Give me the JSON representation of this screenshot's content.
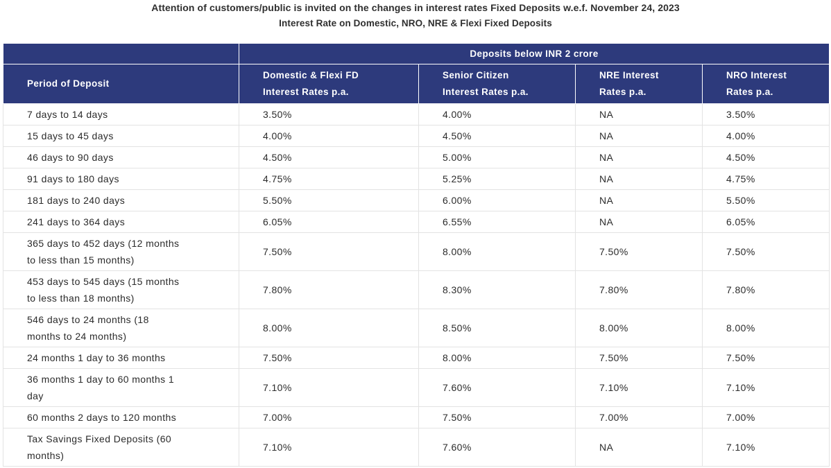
{
  "notice": {
    "line1": "Attention of customers/public is invited on the changes in interest rates Fixed Deposits w.e.f. November 24, 2023",
    "line2": "Interest Rate on Domestic, NRO, NRE & Flexi Fixed Deposits"
  },
  "table": {
    "group_header": "Deposits below INR 2 crore",
    "headers": [
      {
        "line1": "Period of Deposit",
        "line2": ""
      },
      {
        "line1": "Domestic & Flexi FD",
        "line2": "Interest Rates p.a."
      },
      {
        "line1": "Senior Citizen",
        "line2": "Interest Rates p.a."
      },
      {
        "line1": "NRE Interest",
        "line2": "Rates p.a."
      },
      {
        "line1": "NRO Interest",
        "line2": "Rates p.a."
      }
    ],
    "rows": [
      {
        "period_line1": "7 days to 14 days",
        "period_line2": "",
        "domestic": "3.50%",
        "senior": "4.00%",
        "nre": "NA",
        "nro": "3.50%"
      },
      {
        "period_line1": "15 days to 45 days",
        "period_line2": "",
        "domestic": "4.00%",
        "senior": "4.50%",
        "nre": "NA",
        "nro": "4.00%"
      },
      {
        "period_line1": "46 days to 90 days",
        "period_line2": "",
        "domestic": "4.50%",
        "senior": "5.00%",
        "nre": "NA",
        "nro": "4.50%"
      },
      {
        "period_line1": "91 days to 180 days",
        "period_line2": "",
        "domestic": "4.75%",
        "senior": "5.25%",
        "nre": "NA",
        "nro": "4.75%"
      },
      {
        "period_line1": "181 days to 240 days",
        "period_line2": "",
        "domestic": "5.50%",
        "senior": "6.00%",
        "nre": "NA",
        "nro": "5.50%"
      },
      {
        "period_line1": "241 days to 364 days",
        "period_line2": "",
        "domestic": "6.05%",
        "senior": "6.55%",
        "nre": "NA",
        "nro": "6.05%"
      },
      {
        "period_line1": "365 days to 452 days (12 months",
        "period_line2": "to less than 15 months)",
        "domestic": "7.50%",
        "senior": "8.00%",
        "nre": "7.50%",
        "nro": "7.50%"
      },
      {
        "period_line1": "453 days to 545 days (15 months",
        "period_line2": "to less than 18 months)",
        "domestic": "7.80%",
        "senior": "8.30%",
        "nre": "7.80%",
        "nro": "7.80%"
      },
      {
        "period_line1": "546 days to 24 months (18",
        "period_line2": "months to 24 months)",
        "domestic": "8.00%",
        "senior": "8.50%",
        "nre": "8.00%",
        "nro": "8.00%"
      },
      {
        "period_line1": "24 months 1 day to 36 months",
        "period_line2": "",
        "domestic": "7.50%",
        "senior": "8.00%",
        "nre": "7.50%",
        "nro": "7.50%"
      },
      {
        "period_line1": "36 months 1 day to 60 months 1",
        "period_line2": "day",
        "domestic": "7.10%",
        "senior": "7.60%",
        "nre": "7.10%",
        "nro": "7.10%"
      },
      {
        "period_line1": "60 months 2 days to 120 months",
        "period_line2": "",
        "domestic": "7.00%",
        "senior": "7.50%",
        "nre": "7.00%",
        "nro": "7.00%"
      },
      {
        "period_line1": "Tax Savings Fixed Deposits (60",
        "period_line2": "months)",
        "domestic": "7.10%",
        "senior": "7.60%",
        "nre": "NA",
        "nro": "7.10%"
      }
    ]
  },
  "colors": {
    "header_bg": "#2d3a7c",
    "header_text": "#ffffff",
    "border": "#e3e3e3"
  }
}
